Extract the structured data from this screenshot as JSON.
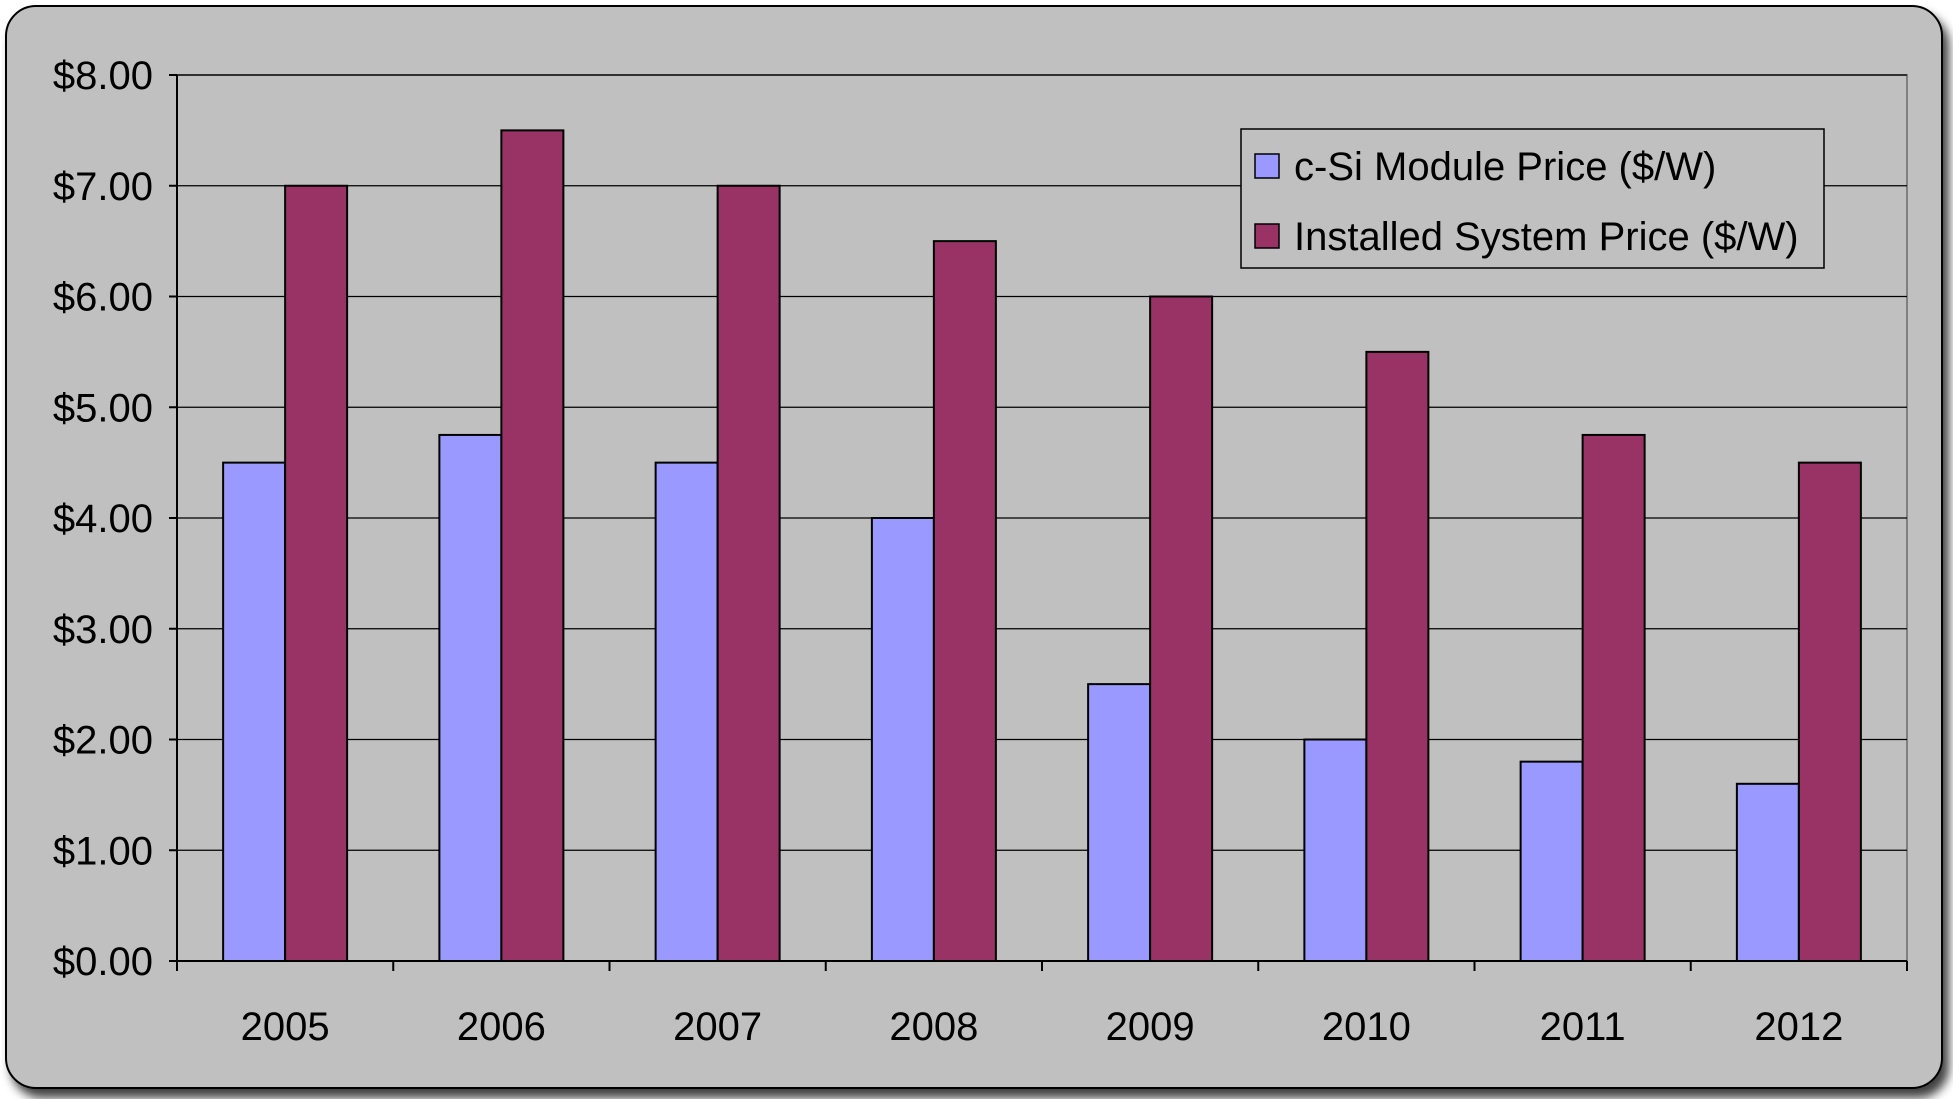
{
  "chart_data": {
    "type": "bar",
    "categories": [
      "2005",
      "2006",
      "2007",
      "2008",
      "2009",
      "2010",
      "2011",
      "2012"
    ],
    "series": [
      {
        "name": "c-Si Module Price ($/W)",
        "color": "#9999FF",
        "values": [
          4.5,
          4.75,
          4.5,
          4.0,
          2.5,
          2.0,
          1.8,
          1.6
        ]
      },
      {
        "name": "Installed System Price ($/W)",
        "color": "#993366",
        "values": [
          7.0,
          7.5,
          7.0,
          6.5,
          6.0,
          5.5,
          4.75,
          4.5
        ]
      }
    ],
    "y_tick_labels": [
      "$0.00",
      "$1.00",
      "$2.00",
      "$3.00",
      "$4.00",
      "$5.00",
      "$6.00",
      "$7.00",
      "$8.00"
    ],
    "ylim": [
      0,
      8
    ],
    "grid": true,
    "legend_position": "top-right",
    "plot_background": "#C0C0C0",
    "frame_background": "#C0C0C0"
  }
}
